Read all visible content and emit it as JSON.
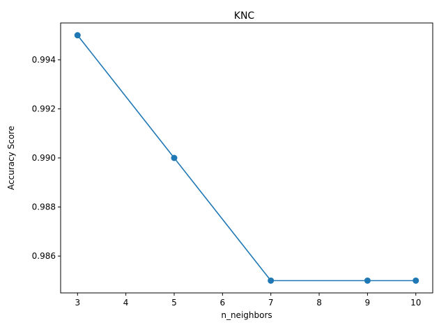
{
  "chart_data": {
    "type": "line",
    "title": "KNC",
    "xlabel": "n_neighbors",
    "ylabel": "Accuracy Score",
    "x": [
      3,
      5,
      7,
      9,
      10
    ],
    "series": [
      {
        "values": [
          0.995,
          0.99,
          0.985,
          0.985,
          0.985
        ],
        "color": "#1f77b4",
        "marker": "circle"
      }
    ],
    "xlim": [
      2.65,
      10.35
    ],
    "ylim": [
      0.9845,
      0.9955
    ],
    "xticks": [
      3,
      4,
      5,
      6,
      7,
      8,
      9,
      10
    ],
    "xtick_labels": [
      "3",
      "4",
      "5",
      "6",
      "7",
      "8",
      "9",
      "10"
    ],
    "yticks": [
      0.986,
      0.988,
      0.99,
      0.992,
      0.994
    ],
    "ytick_labels": [
      "0.986",
      "0.988",
      "0.990",
      "0.992",
      "0.994"
    ],
    "grid": false,
    "legend": "none"
  }
}
